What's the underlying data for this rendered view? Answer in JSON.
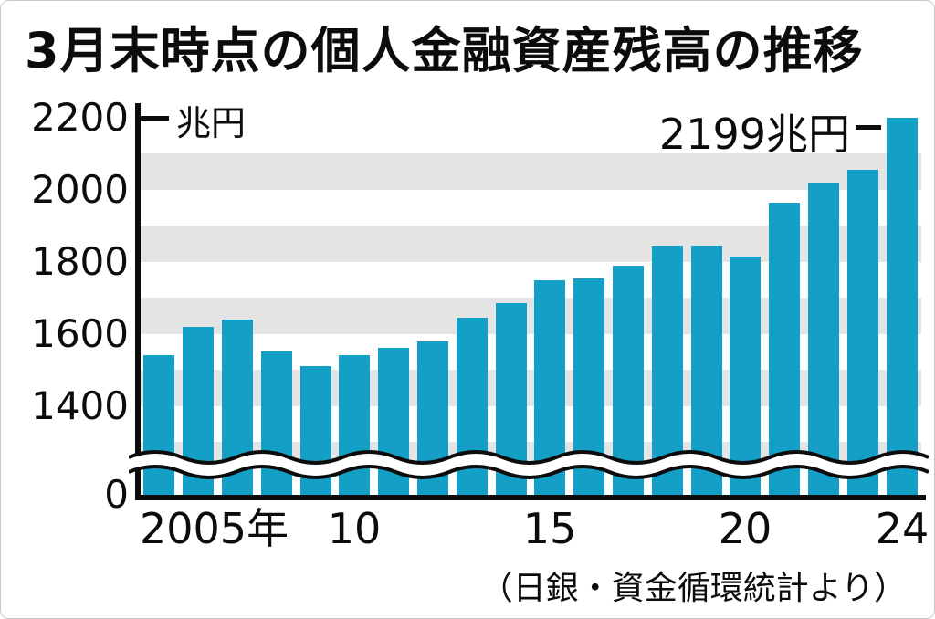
{
  "title": "3月末時点の個人金融資産残高の推移",
  "y_axis": {
    "unit_label": "兆円"
  },
  "annotation": {
    "label": "2199兆円"
  },
  "source_note": "（日銀・資金循環統計より）",
  "chart_data": {
    "type": "bar",
    "title": "3月末時点の個人金融資産残高の推移",
    "ylabel": "兆円",
    "categories": [
      2005,
      2006,
      2007,
      2008,
      2009,
      2010,
      2011,
      2012,
      2013,
      2014,
      2015,
      2016,
      2017,
      2018,
      2019,
      2020,
      2021,
      2022,
      2023,
      2024
    ],
    "values": [
      1540,
      1620,
      1640,
      1550,
      1510,
      1540,
      1560,
      1580,
      1645,
      1685,
      1750,
      1755,
      1790,
      1845,
      1845,
      1815,
      1965,
      2020,
      2055,
      2199
    ],
    "y_ticks": [
      0,
      1400,
      1600,
      1800,
      2000,
      2200
    ],
    "x_tick_labels": [
      {
        "at": 2005,
        "label": "2005年"
      },
      {
        "at": 2010,
        "label": "10"
      },
      {
        "at": 2015,
        "label": "15"
      },
      {
        "at": 2020,
        "label": "20"
      },
      {
        "at": 2024,
        "label": "24"
      }
    ],
    "axis_break": {
      "between": [
        0,
        1300
      ]
    },
    "band_ranges": [
      [
        1400,
        1500
      ],
      [
        1600,
        1700
      ],
      [
        1800,
        1900
      ],
      [
        2000,
        2100
      ]
    ],
    "grid": "alternating horizontal gray bands",
    "legend_position": "none",
    "annotation": {
      "year": 2024,
      "value": 2199,
      "label": "2199兆円"
    },
    "colors": {
      "bar": "#14a0c6",
      "band": "#e4e4e4",
      "axis": "#0c0c0c"
    },
    "source": "（日銀・資金循環統計より）"
  }
}
